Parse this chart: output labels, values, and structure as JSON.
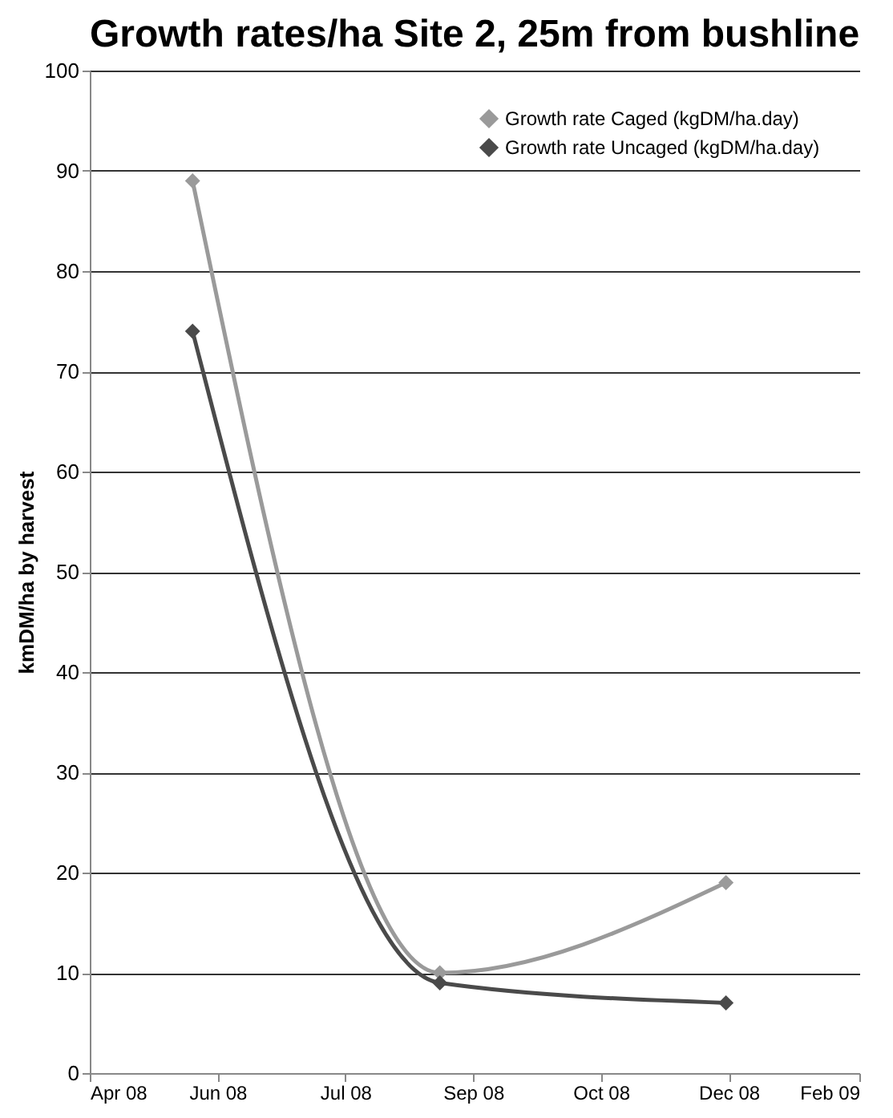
{
  "chart_data": {
    "type": "line",
    "title": "Growth rates/ha Site 2, 25m from bushline",
    "ylabel": "kmDM/ha by harvest",
    "x": [
      "2008-06-06",
      "2008-09-03",
      "2008-12-15"
    ],
    "series": [
      {
        "name": "Growth rate Caged (kgDM/ha.day)",
        "color": "#9a9a9a",
        "values": [
          89,
          10,
          19
        ]
      },
      {
        "name": "Growth rate Uncaged (kgDM/ha.day)",
        "color": "#4a4a4a",
        "values": [
          74,
          9,
          7
        ]
      }
    ],
    "xlim": [
      "2008-04-30",
      "2009-02-01"
    ],
    "xticks": [
      {
        "value": "2008-04-30",
        "label": "Apr 08"
      },
      {
        "value": "2008-06-15",
        "label": "Jun 08"
      },
      {
        "value": "2008-07-31",
        "label": "Jul 08"
      },
      {
        "value": "2008-09-15",
        "label": "Sep 08"
      },
      {
        "value": "2008-10-31",
        "label": "Oct 08"
      },
      {
        "value": "2008-12-16",
        "label": "Dec 08"
      },
      {
        "value": "2009-02-01",
        "label": "Feb 09"
      }
    ],
    "ylim": [
      0,
      100
    ],
    "yticks": [
      0,
      10,
      20,
      30,
      40,
      50,
      60,
      70,
      80,
      90,
      100
    ],
    "grid": "y",
    "legend": "top right",
    "marker": "diamond",
    "line_style": "solid"
  }
}
